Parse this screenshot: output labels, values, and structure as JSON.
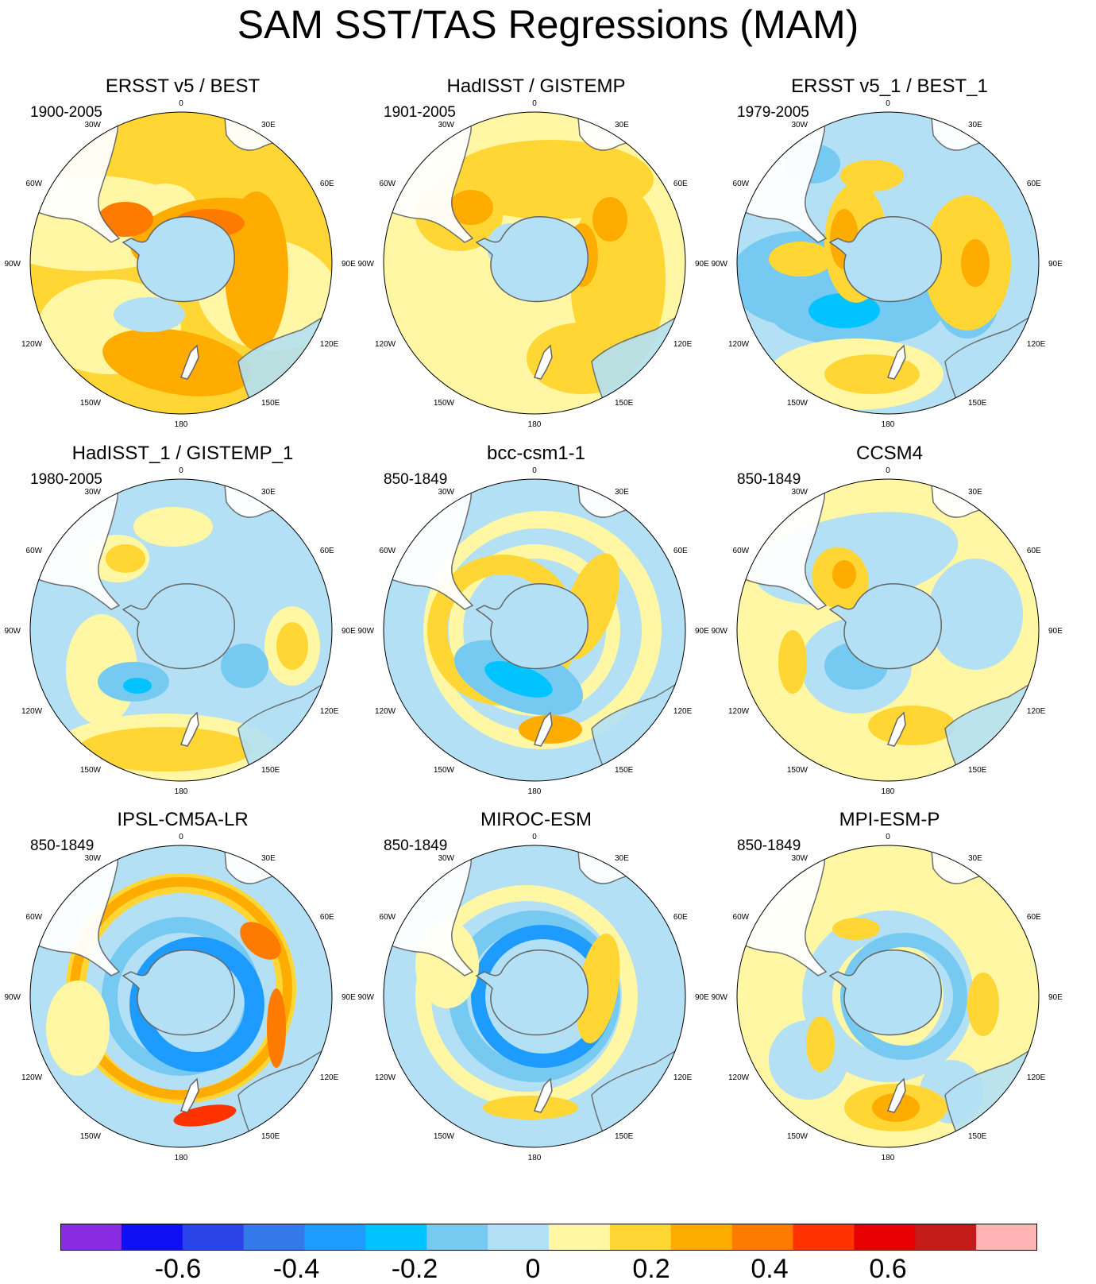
{
  "title": "SAM SST/TAS Regressions (MAM)",
  "colorbar": {
    "colors": [
      "#8a2be2",
      "#1010f5",
      "#2a44e8",
      "#3479ea",
      "#1e9bff",
      "#00c3ff",
      "#76c9f1",
      "#b3e0f4",
      "#fff7a3",
      "#ffd634",
      "#ffac00",
      "#ff7b00",
      "#ff3300",
      "#e60000",
      "#c41b1b",
      "#ffb3b3"
    ],
    "labels": [
      "-0.6",
      "-0.4",
      "-0.2",
      "0",
      "0.2",
      "0.4",
      "0.6"
    ]
  },
  "lon_labels": [
    "0",
    "30E",
    "60E",
    "90E",
    "120E",
    "150E",
    "180",
    "150W",
    "120W",
    "90W",
    "60W",
    "30W"
  ],
  "panels": [
    {
      "title": "ERSST v5 / BEST",
      "period": "1900-2005"
    },
    {
      "title": "HadISST / GISTEMP",
      "period": "1901-2005"
    },
    {
      "title": "ERSST v5_1 / BEST_1",
      "period": "1979-2005"
    },
    {
      "title": "HadISST_1 / GISTEMP_1",
      "period": "1980-2005"
    },
    {
      "title": "bcc-csm1-1",
      "period": "850-1849"
    },
    {
      "title": "CCSM4",
      "period": "850-1849"
    },
    {
      "title": "IPSL-CM5A-LR",
      "period": "850-1849"
    },
    {
      "title": "MIROC-ESM",
      "period": "850-1849"
    },
    {
      "title": "MPI-ESM-P",
      "period": "850-1849"
    }
  ]
}
